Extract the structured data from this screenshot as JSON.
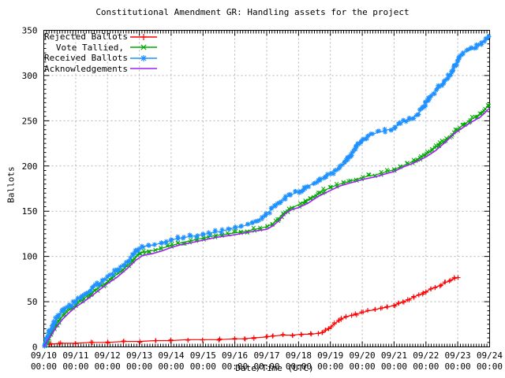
{
  "chart_data": {
    "type": "line",
    "title": "Constitutional Amendment GR: Handling assets for the project",
    "xlabel": "Date/Time (UTC)",
    "ylabel": "Ballots",
    "ylim": [
      0,
      350
    ],
    "y_tick_step": 50,
    "y_ticks": [
      0,
      50,
      100,
      150,
      200,
      250,
      300,
      350
    ],
    "x_range_days": 14,
    "x_ticks": [
      "09/10",
      "09/11",
      "09/12",
      "09/13",
      "09/14",
      "09/15",
      "09/16",
      "09/17",
      "09/18",
      "09/19",
      "09/20",
      "09/21",
      "09/22",
      "09/23",
      "09/24"
    ],
    "x_tick_time": "00:00",
    "grid": true,
    "legend_position": "top-left",
    "series": [
      {
        "name": "Rejected Ballots",
        "color": "#ff0000",
        "marker": "plus",
        "points": [
          [
            0,
            0
          ],
          [
            0.05,
            2
          ],
          [
            0.2,
            3
          ],
          [
            0.5,
            4
          ],
          [
            1.0,
            4
          ],
          [
            1.5,
            5
          ],
          [
            2.0,
            5
          ],
          [
            2.5,
            6
          ],
          [
            3.0,
            6
          ],
          [
            3.5,
            7
          ],
          [
            4.0,
            7
          ],
          [
            4.5,
            8
          ],
          [
            5.0,
            8
          ],
          [
            5.5,
            8
          ],
          [
            6.0,
            9
          ],
          [
            6.3,
            9
          ],
          [
            6.6,
            10
          ],
          [
            7.0,
            11
          ],
          [
            7.2,
            12
          ],
          [
            7.5,
            13
          ],
          [
            7.8,
            13
          ],
          [
            8.1,
            14
          ],
          [
            8.4,
            14
          ],
          [
            8.6,
            15
          ],
          [
            8.75,
            16
          ],
          [
            8.85,
            18
          ],
          [
            8.95,
            20
          ],
          [
            9.05,
            23
          ],
          [
            9.15,
            26
          ],
          [
            9.25,
            29
          ],
          [
            9.35,
            31
          ],
          [
            9.5,
            33
          ],
          [
            9.65,
            35
          ],
          [
            9.8,
            36
          ],
          [
            10.0,
            38
          ],
          [
            10.2,
            40
          ],
          [
            10.4,
            41
          ],
          [
            10.6,
            43
          ],
          [
            10.8,
            44
          ],
          [
            11.0,
            46
          ],
          [
            11.15,
            48
          ],
          [
            11.3,
            50
          ],
          [
            11.45,
            52
          ],
          [
            11.6,
            55
          ],
          [
            11.75,
            57
          ],
          [
            11.9,
            59
          ],
          [
            12.0,
            61
          ],
          [
            12.15,
            64
          ],
          [
            12.3,
            66
          ],
          [
            12.45,
            68
          ],
          [
            12.6,
            71
          ],
          [
            12.75,
            73
          ],
          [
            12.9,
            76
          ],
          [
            13.0,
            77
          ]
        ]
      },
      {
        "name": "Vote Tallied,",
        "color": "#00a800",
        "marker": "cross",
        "points": [
          [
            0,
            0
          ],
          [
            0.07,
            4
          ],
          [
            0.15,
            9
          ],
          [
            0.25,
            16
          ],
          [
            0.35,
            23
          ],
          [
            0.5,
            30
          ],
          [
            0.65,
            36
          ],
          [
            0.8,
            41
          ],
          [
            1.0,
            46
          ],
          [
            1.2,
            52
          ],
          [
            1.4,
            57
          ],
          [
            1.6,
            62
          ],
          [
            1.8,
            67
          ],
          [
            2.0,
            72
          ],
          [
            2.2,
            78
          ],
          [
            2.4,
            83
          ],
          [
            2.6,
            89
          ],
          [
            2.8,
            95
          ],
          [
            3.0,
            103
          ],
          [
            3.15,
            105
          ],
          [
            3.3,
            106
          ],
          [
            3.5,
            107
          ],
          [
            3.7,
            109
          ],
          [
            3.9,
            111
          ],
          [
            4.0,
            112
          ],
          [
            4.2,
            114
          ],
          [
            4.4,
            116
          ],
          [
            4.6,
            117
          ],
          [
            4.8,
            119
          ],
          [
            5.0,
            120
          ],
          [
            5.2,
            122
          ],
          [
            5.4,
            123
          ],
          [
            5.6,
            124
          ],
          [
            5.8,
            125
          ],
          [
            6.0,
            126
          ],
          [
            6.2,
            127
          ],
          [
            6.4,
            128
          ],
          [
            6.6,
            130
          ],
          [
            6.8,
            131
          ],
          [
            7.0,
            133
          ],
          [
            7.2,
            136
          ],
          [
            7.35,
            141
          ],
          [
            7.5,
            147
          ],
          [
            7.65,
            151
          ],
          [
            7.8,
            154
          ],
          [
            8.0,
            157
          ],
          [
            8.2,
            161
          ],
          [
            8.4,
            165
          ],
          [
            8.6,
            169
          ],
          [
            8.8,
            173
          ],
          [
            9.0,
            176
          ],
          [
            9.2,
            179
          ],
          [
            9.4,
            181
          ],
          [
            9.6,
            183
          ],
          [
            9.8,
            185
          ],
          [
            10.0,
            187
          ],
          [
            10.2,
            189
          ],
          [
            10.4,
            190
          ],
          [
            10.6,
            192
          ],
          [
            10.8,
            194
          ],
          [
            11.0,
            196
          ],
          [
            11.2,
            199
          ],
          [
            11.4,
            202
          ],
          [
            11.6,
            205
          ],
          [
            11.8,
            209
          ],
          [
            12.0,
            213
          ],
          [
            12.2,
            218
          ],
          [
            12.4,
            223
          ],
          [
            12.6,
            228
          ],
          [
            12.8,
            234
          ],
          [
            13.0,
            241
          ],
          [
            13.2,
            246
          ],
          [
            13.4,
            251
          ],
          [
            13.6,
            255
          ],
          [
            13.8,
            261
          ],
          [
            14.0,
            268
          ]
        ]
      },
      {
        "name": "Received Ballots",
        "color": "#1e90ff",
        "marker": "star",
        "points": [
          [
            0,
            0
          ],
          [
            0.05,
            4
          ],
          [
            0.1,
            9
          ],
          [
            0.2,
            18
          ],
          [
            0.3,
            26
          ],
          [
            0.45,
            34
          ],
          [
            0.6,
            40
          ],
          [
            0.8,
            45
          ],
          [
            1.0,
            50
          ],
          [
            1.15,
            55
          ],
          [
            1.3,
            59
          ],
          [
            1.5,
            64
          ],
          [
            1.7,
            69
          ],
          [
            1.85,
            73
          ],
          [
            2.0,
            77
          ],
          [
            2.15,
            81
          ],
          [
            2.3,
            85
          ],
          [
            2.5,
            91
          ],
          [
            2.65,
            96
          ],
          [
            2.8,
            101
          ],
          [
            2.95,
            107
          ],
          [
            3.1,
            111
          ],
          [
            3.3,
            112
          ],
          [
            3.5,
            113
          ],
          [
            3.7,
            115
          ],
          [
            3.85,
            116
          ],
          [
            4.0,
            118
          ],
          [
            4.2,
            120
          ],
          [
            4.4,
            121
          ],
          [
            4.6,
            122
          ],
          [
            4.8,
            123
          ],
          [
            5.0,
            124
          ],
          [
            5.2,
            126
          ],
          [
            5.4,
            127
          ],
          [
            5.6,
            128
          ],
          [
            5.8,
            130
          ],
          [
            6.0,
            132
          ],
          [
            6.2,
            133
          ],
          [
            6.4,
            135
          ],
          [
            6.55,
            136
          ],
          [
            6.7,
            139
          ],
          [
            6.85,
            143
          ],
          [
            7.0,
            147
          ],
          [
            7.15,
            152
          ],
          [
            7.3,
            157
          ],
          [
            7.45,
            161
          ],
          [
            7.6,
            165
          ],
          [
            7.75,
            168
          ],
          [
            7.9,
            170
          ],
          [
            8.0,
            172
          ],
          [
            8.15,
            175
          ],
          [
            8.3,
            178
          ],
          [
            8.5,
            181
          ],
          [
            8.7,
            185
          ],
          [
            8.85,
            188
          ],
          [
            9.0,
            191
          ],
          [
            9.15,
            195
          ],
          [
            9.3,
            199
          ],
          [
            9.45,
            203
          ],
          [
            9.55,
            208
          ],
          [
            9.65,
            213
          ],
          [
            9.8,
            220
          ],
          [
            9.95,
            227
          ],
          [
            10.0,
            229
          ],
          [
            10.15,
            232
          ],
          [
            10.3,
            235
          ],
          [
            10.5,
            237
          ],
          [
            10.7,
            239
          ],
          [
            10.9,
            241
          ],
          [
            11.0,
            242
          ],
          [
            11.15,
            246
          ],
          [
            11.3,
            249
          ],
          [
            11.45,
            252
          ],
          [
            11.6,
            254
          ],
          [
            11.75,
            258
          ],
          [
            11.9,
            263
          ],
          [
            12.0,
            270
          ],
          [
            12.1,
            275
          ],
          [
            12.25,
            281
          ],
          [
            12.4,
            287
          ],
          [
            12.55,
            293
          ],
          [
            12.7,
            299
          ],
          [
            12.85,
            306
          ],
          [
            12.95,
            313
          ],
          [
            13.05,
            320
          ],
          [
            13.15,
            325
          ],
          [
            13.3,
            327
          ],
          [
            13.45,
            329
          ],
          [
            13.6,
            332
          ],
          [
            13.75,
            336
          ],
          [
            13.9,
            341
          ],
          [
            14.0,
            345
          ]
        ]
      },
      {
        "name": "Acknowledgements",
        "color": "#a020f0",
        "marker": "none",
        "points": [
          [
            0,
            0
          ],
          [
            0.1,
            6
          ],
          [
            0.25,
            14
          ],
          [
            0.4,
            22
          ],
          [
            0.6,
            31
          ],
          [
            0.8,
            38
          ],
          [
            1.0,
            44
          ],
          [
            1.3,
            51
          ],
          [
            1.6,
            59
          ],
          [
            2.0,
            70
          ],
          [
            2.3,
            77
          ],
          [
            2.6,
            86
          ],
          [
            2.9,
            96
          ],
          [
            3.1,
            101
          ],
          [
            3.4,
            103
          ],
          [
            3.7,
            106
          ],
          [
            4.0,
            110
          ],
          [
            4.3,
            113
          ],
          [
            4.6,
            115
          ],
          [
            5.0,
            118
          ],
          [
            5.4,
            121
          ],
          [
            5.8,
            123
          ],
          [
            6.0,
            124
          ],
          [
            6.3,
            126
          ],
          [
            6.6,
            128
          ],
          [
            7.0,
            130
          ],
          [
            7.2,
            134
          ],
          [
            7.4,
            140
          ],
          [
            7.6,
            148
          ],
          [
            7.8,
            152
          ],
          [
            8.0,
            154
          ],
          [
            8.3,
            159
          ],
          [
            8.6,
            166
          ],
          [
            9.0,
            173
          ],
          [
            9.3,
            178
          ],
          [
            9.6,
            181
          ],
          [
            10.0,
            185
          ],
          [
            10.4,
            188
          ],
          [
            10.8,
            192
          ],
          [
            11.0,
            194
          ],
          [
            11.3,
            199
          ],
          [
            11.6,
            203
          ],
          [
            12.0,
            210
          ],
          [
            12.3,
            217
          ],
          [
            12.6,
            226
          ],
          [
            12.9,
            236
          ],
          [
            13.1,
            241
          ],
          [
            13.4,
            248
          ],
          [
            13.7,
            254
          ],
          [
            14.0,
            264
          ]
        ]
      }
    ],
    "colors": {
      "grid": "#b4b4b4",
      "axis": "#000000",
      "background": "#ffffff"
    }
  }
}
